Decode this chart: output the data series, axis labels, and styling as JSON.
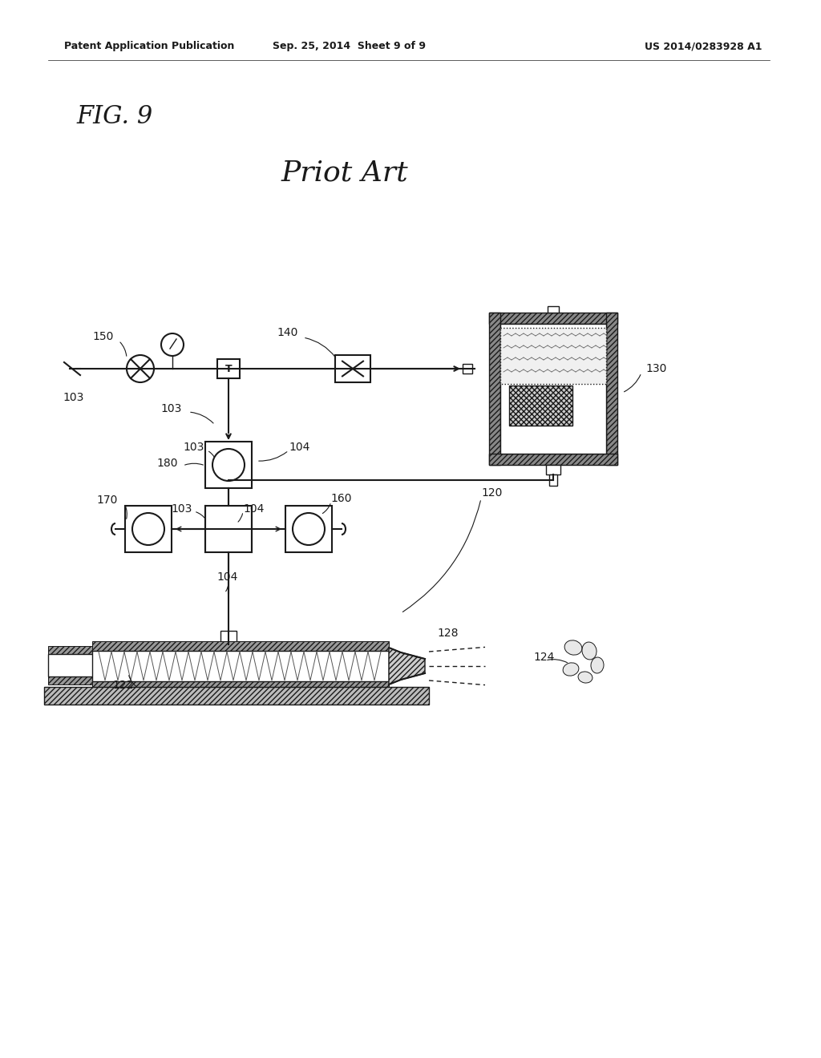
{
  "bg_color": "#ffffff",
  "header_left": "Patent Application Publication",
  "header_mid": "Sep. 25, 2014  Sheet 9 of 9",
  "header_right": "US 2014/0283928 A1",
  "fig_label": "FIG. 9",
  "subtitle": "Priot Art",
  "line_color": "#1a1a1a"
}
